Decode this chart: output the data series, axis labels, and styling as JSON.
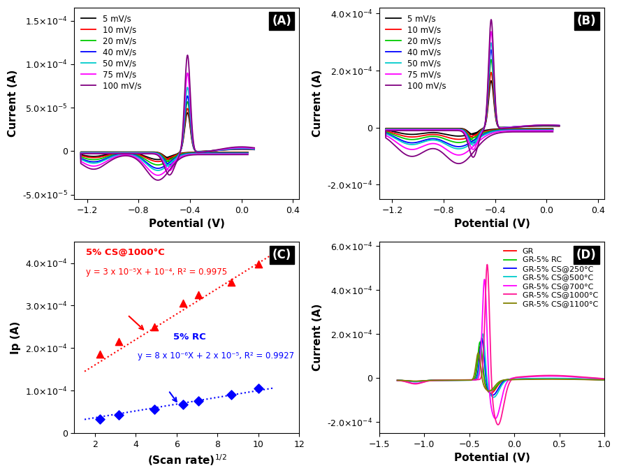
{
  "panel_A": {
    "label": "(A)",
    "xlabel": "Potential (V)",
    "ylabel": "Current (A)",
    "xlim": [
      -1.3,
      0.45
    ],
    "ylim": [
      -5.5e-05,
      0.000165
    ],
    "yticks": [
      -5e-05,
      0.0,
      5e-05,
      0.0001,
      0.00015
    ],
    "xticks": [
      -1.2,
      -0.8,
      -0.4,
      0.0,
      0.4
    ],
    "scan_rates": [
      5,
      10,
      20,
      40,
      50,
      75,
      100
    ],
    "colors": [
      "#000000",
      "#ff0000",
      "#00cc00",
      "#0000ff",
      "#00cccc",
      "#ff00ff",
      "#800080"
    ],
    "anodic_peaks_A": [
      4.5e-05,
      5e-05,
      5.8e-05,
      6.5e-05,
      7.5e-05,
      9.2e-05,
      0.000113
    ],
    "cathodic_peaks_A": [
      1.5e-05,
      1.8e-05,
      2.2e-05,
      2.8e-05,
      3.2e-05,
      4e-05,
      4.9e-05
    ],
    "reductive_peaks_A": [
      1.2e-05,
      1.5e-05,
      2e-05,
      2.5e-05,
      2.8e-05,
      3.5e-05,
      4.2e-05
    ]
  },
  "panel_B": {
    "label": "(B)",
    "xlabel": "Potential (V)",
    "ylabel": "Current (A)",
    "xlim": [
      -1.3,
      0.45
    ],
    "ylim": [
      -0.00025,
      0.00042
    ],
    "yticks": [
      -0.0002,
      0.0,
      0.0002,
      0.0004
    ],
    "xticks": [
      -1.2,
      -0.8,
      -0.4,
      0.0,
      0.4
    ],
    "scan_rates": [
      5,
      10,
      20,
      40,
      50,
      75,
      100
    ],
    "colors": [
      "#000000",
      "#ff0000",
      "#00cc00",
      "#0000ff",
      "#00cccc",
      "#ff00ff",
      "#800080"
    ],
    "anodic_peaks_B": [
      0.000165,
      0.000195,
      0.00024,
      0.000275,
      0.0003,
      0.00034,
      0.000385
    ],
    "cathodic_peaks_B": [
      5e-05,
      7e-05,
      9e-05,
      0.00011,
      0.000125,
      0.000155,
      0.00021
    ],
    "reductive_peaks_B": [
      4e-05,
      5.5e-05,
      7e-05,
      9e-05,
      0.0001,
      0.00013,
      0.00017
    ]
  },
  "panel_C": {
    "label": "(C)",
    "xlabel": "(Scan rate)¹⁄²",
    "ylabel": "Ip (A)",
    "xlim": [
      1,
      12
    ],
    "ylim": [
      0,
      0.00045
    ],
    "yticks": [
      0,
      0.0001,
      0.0002,
      0.0003,
      0.0004
    ],
    "xticks": [
      2,
      4,
      6,
      8,
      10,
      12
    ],
    "red_x": [
      2.236,
      3.162,
      4.899,
      6.325,
      7.071,
      8.66,
      10.0
    ],
    "red_y": [
      0.000185,
      0.000215,
      0.00025,
      0.000305,
      0.000325,
      0.000355,
      0.000398
    ],
    "blue_x": [
      2.236,
      3.162,
      4.899,
      6.325,
      7.071,
      8.66,
      10.0
    ],
    "blue_y": [
      3.2e-05,
      4.2e-05,
      5.5e-05,
      6.8e-05,
      7.5e-05,
      9e-05,
      0.000105
    ],
    "red_label": "5% CS@1000°C",
    "red_eq": "y = 3 x 10⁻⁵X + 10⁻⁴, R² = 0.9975",
    "blue_label": "5% RC",
    "blue_eq": "y = 8 x 10⁻⁶X + 2 x 10⁻⁵, R² = 0.9927",
    "red_fit_m": 3e-05,
    "red_fit_b": 0.0001,
    "blue_fit_m": 8e-06,
    "blue_fit_b": 2e-05
  },
  "panel_D": {
    "label": "(D)",
    "xlabel": "Potential (V)",
    "ylabel": "Current (A)",
    "xlim": [
      -1.5,
      1.0
    ],
    "ylim": [
      -0.00025,
      0.00062
    ],
    "yticks": [
      -0.0002,
      0.0,
      0.0002,
      0.0004,
      0.0006
    ],
    "xticks": [
      -1.5,
      -1.0,
      -0.5,
      0.0,
      0.5,
      1.0
    ],
    "legend_labels": [
      "GR",
      "GR-5% RC",
      "GR-5% CS@250°C",
      "GR-5% CS@500°C",
      "GR-5% CS@700°C",
      "GR-5% CS@1000°C",
      "GR-5% CS@1100°C"
    ],
    "legend_colors": [
      "#ff0000",
      "#00cc00",
      "#0000ff",
      "#00cccc",
      "#ff00ff",
      "#ff1493",
      "#808000"
    ],
    "peak_heights": [
      0.00016,
      0.00018,
      0.0002,
      0.00022,
      0.00048,
      0.00055,
      0.00013
    ],
    "peak_positions": [
      -0.38,
      -0.38,
      -0.36,
      -0.35,
      -0.33,
      -0.3,
      -0.4
    ],
    "cathodic_dip_heights": [
      6e-05,
      5e-05,
      7e-05,
      8e-05,
      0.00018,
      0.00021,
      5e-05
    ]
  },
  "bg_color": "#ffffff",
  "tick_fontsize": 9,
  "label_fontsize": 11,
  "legend_fontsize": 8.5
}
